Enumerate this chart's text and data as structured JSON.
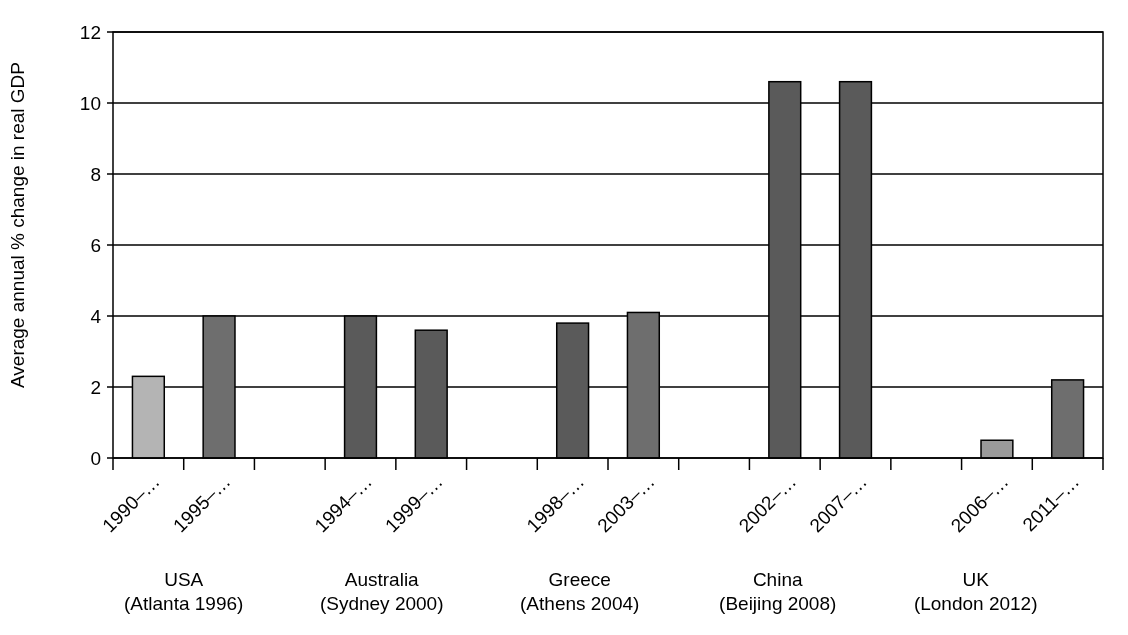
{
  "chart_data": {
    "type": "bar",
    "ylabel": "Average annual % change in real GDP",
    "categories": [
      "1990–…",
      "1995–…",
      null,
      "1994–…",
      "1999–…",
      null,
      "1998–…",
      "2003–…",
      null,
      "2002–…",
      "2007–…",
      null,
      "2006–…",
      "2011–…"
    ],
    "values": [
      2.3,
      4.0,
      null,
      4.0,
      3.6,
      null,
      3.8,
      4.1,
      null,
      10.6,
      10.6,
      null,
      0.5,
      2.2
    ],
    "colors": [
      "#b4b4b4",
      "#6e6e6e",
      null,
      "#5a5a5a",
      "#5a5a5a",
      null,
      "#5a5a5a",
      "#6e6e6e",
      null,
      "#5a5a5a",
      "#5a5a5a",
      null,
      "#9a9a9a",
      "#6e6e6e"
    ],
    "ylim": [
      0,
      12
    ],
    "yticks": [
      0,
      2,
      4,
      6,
      8,
      10,
      12
    ],
    "grid": "y",
    "annotations": [
      "USA\n(Atlanta 1996)",
      "Australia\n(Sydney 2000)",
      "Greece\n(Athens 2004)",
      "China\n(Beijing 2008)",
      "UK\n(London 2012)"
    ]
  }
}
